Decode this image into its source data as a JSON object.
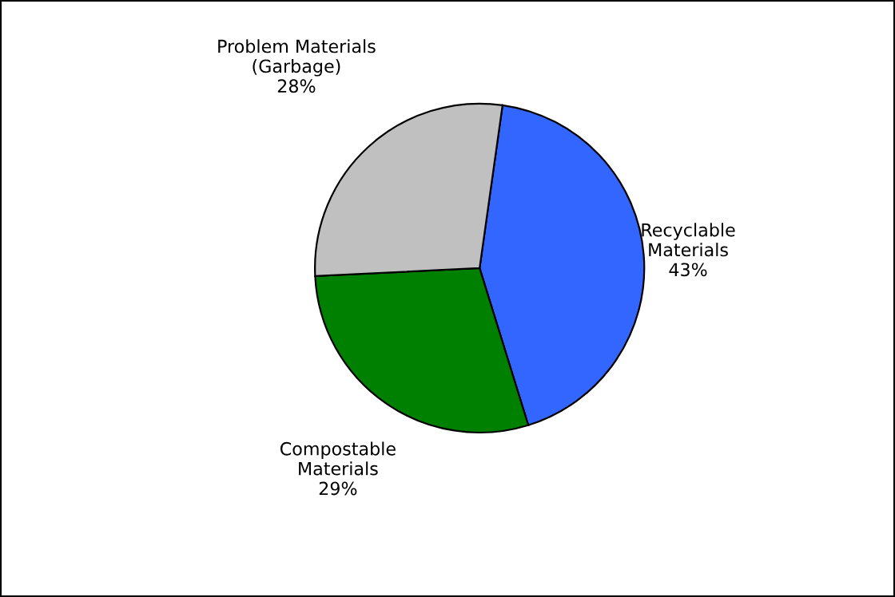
{
  "chart_data": {
    "type": "pie",
    "categories": [
      "Recyclable\nMaterials",
      "Compostable\nMaterials",
      "Problem Materials\n(Garbage)"
    ],
    "values": [
      43,
      29,
      28
    ],
    "value_labels": [
      "43%",
      "29%",
      "28%"
    ],
    "colors": [
      "#3366ff",
      "#008000",
      "#c0c0c0"
    ],
    "legend": false
  }
}
